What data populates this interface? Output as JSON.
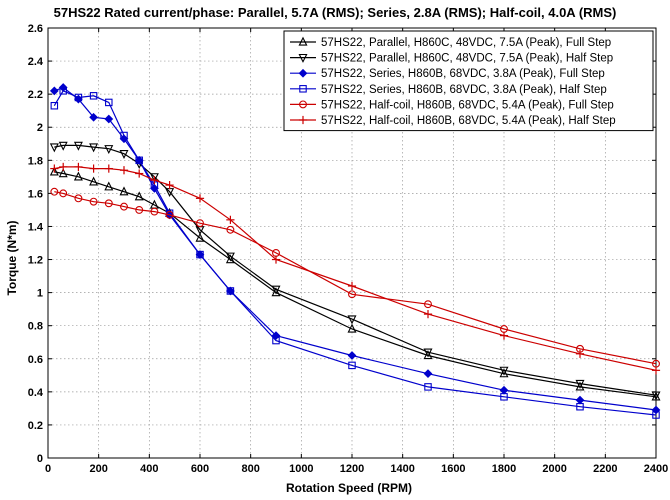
{
  "chart_data": {
    "type": "line",
    "title": "57HS22 Rated current/phase: Parallel, 5.7A (RMS); Series, 2.8A (RMS); Half-coil, 4.0A (RMS)",
    "xlabel": "Rotation Speed (RPM)",
    "ylabel": "Torque (N*m)",
    "xlim": [
      0,
      2400
    ],
    "ylim": [
      0,
      2.6
    ],
    "xticks": [
      0,
      200,
      400,
      600,
      800,
      1000,
      1200,
      1400,
      1600,
      1800,
      2000,
      2200,
      2400
    ],
    "yticks": [
      0,
      0.2,
      0.4,
      0.6,
      0.8,
      1,
      1.2,
      1.4,
      1.6,
      1.8,
      2,
      2.2,
      2.4,
      2.6
    ],
    "grid": true,
    "legend_position": "top-right",
    "series": [
      {
        "name": "57HS22, Parallel, H860C, 48VDC, 7.5A (Peak), Full Step",
        "color": "#000000",
        "marker": "triangle-up",
        "x": [
          25,
          60,
          120,
          180,
          240,
          300,
          360,
          420,
          480,
          600,
          720,
          900,
          1200,
          1500,
          1800,
          2100,
          2400
        ],
        "y": [
          1.73,
          1.72,
          1.7,
          1.67,
          1.64,
          1.61,
          1.58,
          1.53,
          1.48,
          1.33,
          1.2,
          1.0,
          0.78,
          0.62,
          0.51,
          0.43,
          0.37
        ]
      },
      {
        "name": "57HS22, Parallel, H860C, 48VDC, 7.5A (Peak), Half Step",
        "color": "#000000",
        "marker": "triangle-down",
        "x": [
          25,
          60,
          120,
          180,
          240,
          300,
          360,
          420,
          480,
          600,
          720,
          900,
          1200,
          1500,
          1800,
          2100,
          2400
        ],
        "y": [
          1.88,
          1.89,
          1.89,
          1.88,
          1.87,
          1.84,
          1.78,
          1.7,
          1.61,
          1.38,
          1.22,
          1.02,
          0.84,
          0.64,
          0.53,
          0.45,
          0.38
        ]
      },
      {
        "name": "57HS22, Series, H860B, 68VDC, 3.8A (Peak), Full Step",
        "color": "#0000cc",
        "marker": "diamond",
        "x": [
          25,
          60,
          120,
          180,
          240,
          300,
          360,
          420,
          480,
          600,
          720,
          900,
          1200,
          1500,
          1800,
          2100,
          2400
        ],
        "y": [
          2.22,
          2.24,
          2.17,
          2.06,
          2.05,
          1.93,
          1.8,
          1.63,
          1.47,
          1.23,
          1.01,
          0.74,
          0.62,
          0.51,
          0.41,
          0.35,
          0.29
        ]
      },
      {
        "name": "57HS22, Series, H860B, 68VDC, 3.8A (Peak), Half Step",
        "color": "#0000cc",
        "marker": "square",
        "x": [
          25,
          60,
          120,
          180,
          240,
          300,
          360,
          420,
          480,
          600,
          720,
          900,
          1200,
          1500,
          1800,
          2100,
          2400
        ],
        "y": [
          2.13,
          2.22,
          2.18,
          2.19,
          2.15,
          1.95,
          1.8,
          1.65,
          1.48,
          1.23,
          1.01,
          0.71,
          0.56,
          0.43,
          0.37,
          0.31,
          0.26
        ]
      },
      {
        "name": "57HS22, Half-coil, H860B, 68VDC, 5.4A (Peak), Full Step",
        "color": "#cc0000",
        "marker": "circle",
        "x": [
          25,
          60,
          120,
          180,
          240,
          300,
          360,
          420,
          480,
          600,
          720,
          900,
          1200,
          1500,
          1800,
          2100,
          2400
        ],
        "y": [
          1.61,
          1.6,
          1.57,
          1.55,
          1.54,
          1.52,
          1.5,
          1.49,
          1.47,
          1.42,
          1.38,
          1.24,
          0.99,
          0.93,
          0.78,
          0.66,
          0.57
        ]
      },
      {
        "name": "57HS22, Half-coil, H860B, 68VDC, 5.4A (Peak), Half Step",
        "color": "#cc0000",
        "marker": "plus",
        "x": [
          25,
          60,
          120,
          180,
          240,
          300,
          360,
          420,
          480,
          600,
          720,
          900,
          1200,
          1500,
          1800,
          2100,
          2400
        ],
        "y": [
          1.75,
          1.76,
          1.76,
          1.75,
          1.75,
          1.74,
          1.72,
          1.68,
          1.65,
          1.57,
          1.44,
          1.2,
          1.04,
          0.87,
          0.74,
          0.63,
          0.53
        ]
      }
    ]
  }
}
